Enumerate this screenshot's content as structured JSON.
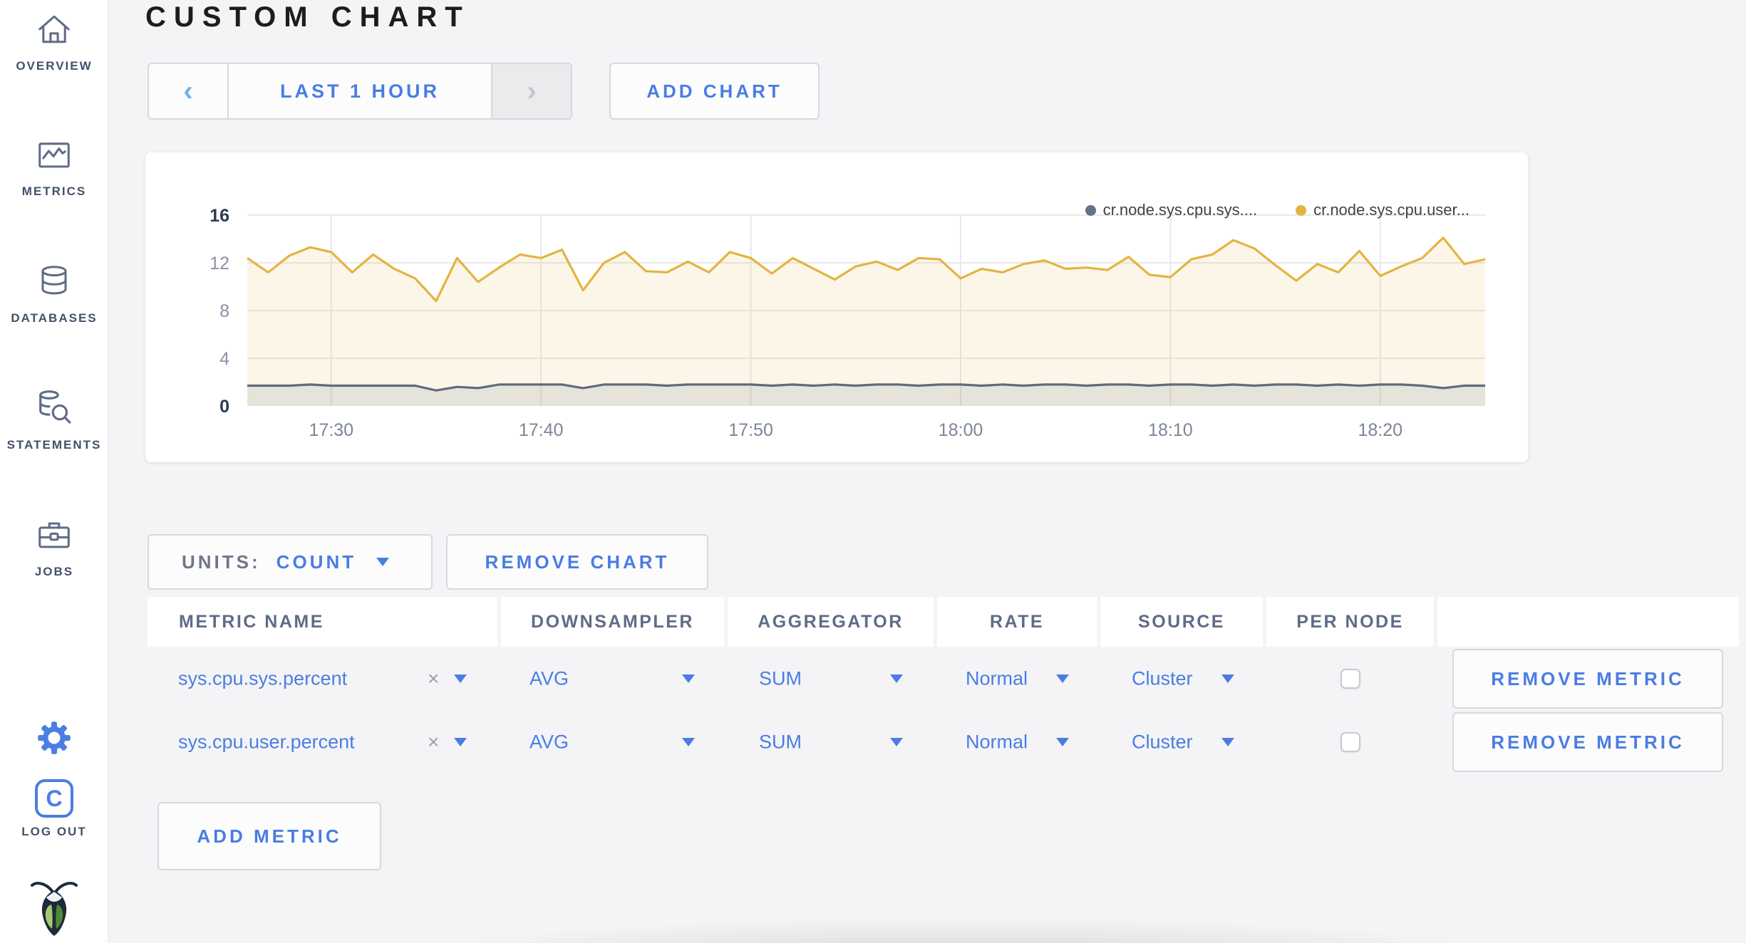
{
  "sidebar": {
    "items": [
      {
        "label": "OVERVIEW",
        "icon": "home-icon"
      },
      {
        "label": "METRICS",
        "icon": "metrics-icon"
      },
      {
        "label": "DATABASES",
        "icon": "databases-icon"
      },
      {
        "label": "STATEMENTS",
        "icon": "statements-icon"
      },
      {
        "label": "JOBS",
        "icon": "jobs-icon"
      }
    ],
    "logout_label": "LOG OUT",
    "logout_icon_letter": "C"
  },
  "header": {
    "title": "CUSTOM CHART"
  },
  "time_selector": {
    "prev": "‹",
    "label": "LAST 1 HOUR",
    "next": "›"
  },
  "add_chart_label": "ADD CHART",
  "chart_data": {
    "type": "line",
    "title": "",
    "xlabel": "",
    "ylabel": "",
    "ylim": [
      0,
      16
    ],
    "y_ticks": [
      0,
      4,
      8,
      12,
      16
    ],
    "y_ticks_emphasized": [
      0,
      16
    ],
    "x_ticks": [
      "17:30",
      "17:40",
      "17:50",
      "18:00",
      "18:10",
      "18:20"
    ],
    "x_tick_minutes": [
      4,
      14,
      24,
      34,
      44,
      54
    ],
    "grid": true,
    "legend_position": "top-right",
    "x_times": [
      "17:26",
      "17:27",
      "17:28",
      "17:29",
      "17:30",
      "17:31",
      "17:32",
      "17:33",
      "17:34",
      "17:35",
      "17:36",
      "17:37",
      "17:38",
      "17:39",
      "17:40",
      "17:41",
      "17:42",
      "17:43",
      "17:44",
      "17:45",
      "17:46",
      "17:47",
      "17:48",
      "17:49",
      "17:50",
      "17:51",
      "17:52",
      "17:53",
      "17:54",
      "17:55",
      "17:56",
      "17:57",
      "17:58",
      "17:59",
      "18:00",
      "18:01",
      "18:02",
      "18:03",
      "18:04",
      "18:05",
      "18:06",
      "18:07",
      "18:08",
      "18:09",
      "18:10",
      "18:11",
      "18:12",
      "18:13",
      "18:14",
      "18:15",
      "18:16",
      "18:17",
      "18:18",
      "18:19",
      "18:20",
      "18:21",
      "18:22",
      "18:23",
      "18:24",
      "18:25"
    ],
    "series": [
      {
        "name": "cr.node.sys.cpu.sys....",
        "color": "#67708a",
        "line_color": "#606a7d",
        "fill": "rgba(96,106,125,0.13)",
        "values": [
          1.7,
          1.7,
          1.7,
          1.8,
          1.7,
          1.7,
          1.7,
          1.7,
          1.7,
          1.3,
          1.6,
          1.5,
          1.8,
          1.8,
          1.8,
          1.8,
          1.5,
          1.8,
          1.8,
          1.8,
          1.7,
          1.8,
          1.8,
          1.8,
          1.8,
          1.7,
          1.8,
          1.7,
          1.8,
          1.7,
          1.8,
          1.8,
          1.7,
          1.8,
          1.8,
          1.7,
          1.8,
          1.7,
          1.8,
          1.8,
          1.7,
          1.8,
          1.8,
          1.7,
          1.8,
          1.8,
          1.7,
          1.8,
          1.7,
          1.8,
          1.8,
          1.7,
          1.8,
          1.7,
          1.8,
          1.8,
          1.7,
          1.5,
          1.7,
          1.7
        ]
      },
      {
        "name": "cr.node.sys.cpu.user...",
        "color": "#e2b53e",
        "line_color": "#e3b440",
        "fill": "rgba(226,181,62,0.12)",
        "values": [
          12.4,
          11.2,
          12.6,
          13.3,
          12.9,
          11.2,
          12.7,
          11.5,
          10.7,
          8.8,
          12.4,
          10.4,
          11.6,
          12.7,
          12.4,
          13.1,
          9.7,
          12.0,
          12.9,
          11.3,
          11.2,
          12.1,
          11.2,
          12.9,
          12.4,
          11.1,
          12.4,
          11.5,
          10.6,
          11.7,
          12.1,
          11.4,
          12.4,
          12.3,
          10.7,
          11.5,
          11.2,
          11.9,
          12.2,
          11.5,
          11.6,
          11.4,
          12.5,
          11.0,
          10.8,
          12.3,
          12.7,
          13.9,
          13.2,
          11.8,
          10.5,
          11.9,
          11.2,
          13.0,
          10.9,
          11.7,
          12.4,
          14.1,
          11.9,
          12.3
        ]
      }
    ]
  },
  "units_control": {
    "label": "UNITS:",
    "value": "COUNT"
  },
  "remove_chart_label": "REMOVE CHART",
  "metrics_table": {
    "columns": [
      "METRIC NAME",
      "DOWNSAMPLER",
      "AGGREGATOR",
      "RATE",
      "SOURCE",
      "PER NODE"
    ],
    "rows": [
      {
        "name": "sys.cpu.sys.percent",
        "clear": "×",
        "downsampler": "AVG",
        "aggregator": "SUM",
        "rate": "Normal",
        "source": "Cluster",
        "per_node_checked": false,
        "remove_label": "REMOVE METRIC"
      },
      {
        "name": "sys.cpu.user.percent",
        "clear": "×",
        "downsampler": "AVG",
        "aggregator": "SUM",
        "rate": "Normal",
        "source": "Cluster",
        "per_node_checked": false,
        "remove_label": "REMOVE METRIC"
      }
    ]
  },
  "add_metric_label": "ADD METRIC",
  "colors": {
    "accent_blue": "#4a7de2",
    "slate": "#5f6c87",
    "series_sys": "#67708a",
    "series_user": "#e2b53e",
    "axis_emphasis": "#2c3a52",
    "axis_muted": "#8a92a3",
    "page_bg": "#f4f4f6",
    "logout_blue": "#1726e0"
  }
}
